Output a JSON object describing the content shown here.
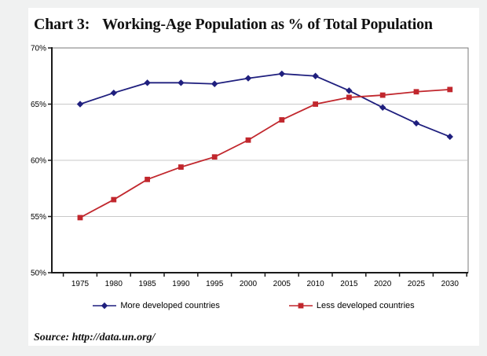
{
  "page": {
    "title_prefix": "Chart 3:",
    "title_main": "Working-Age Population as % of Total Population",
    "source": "Source: http://data.un.org/"
  },
  "colors": {
    "more_developed": "#1f1f7e",
    "less_developed": "#c1272d",
    "gridline": "#c9c9c9",
    "axis": "#1a1a1a",
    "plot_border": "#7a7a7a",
    "card_background": "#ffffff",
    "page_background": "#f0f1f1"
  },
  "chart_data": {
    "type": "line",
    "title": "Chart 3: Working-Age Population as % of Total Population",
    "categories": [
      "1975",
      "1980",
      "1985",
      "1990",
      "1995",
      "2000",
      "2005",
      "2010",
      "2015",
      "2020",
      "2025",
      "2030"
    ],
    "series": [
      {
        "name": "More developed countries",
        "color": "#1f1f7e",
        "marker": "diamond",
        "values": [
          65.0,
          66.0,
          66.9,
          66.9,
          66.8,
          67.3,
          67.7,
          67.5,
          66.2,
          64.7,
          63.3,
          62.1
        ]
      },
      {
        "name": "Less developed countries",
        "color": "#c1272d",
        "marker": "square",
        "values": [
          54.9,
          56.5,
          58.3,
          59.4,
          60.3,
          61.8,
          63.6,
          65.0,
          65.6,
          65.8,
          66.1,
          66.3
        ]
      }
    ],
    "xlabel": "",
    "ylabel": "",
    "ylim": [
      50,
      70
    ],
    "ytick_values": [
      50,
      55,
      60,
      65,
      70
    ],
    "ytick_labels": [
      "50%",
      "55%",
      "60%",
      "65%",
      "70%"
    ],
    "grid": true,
    "legend_position": "bottom"
  }
}
